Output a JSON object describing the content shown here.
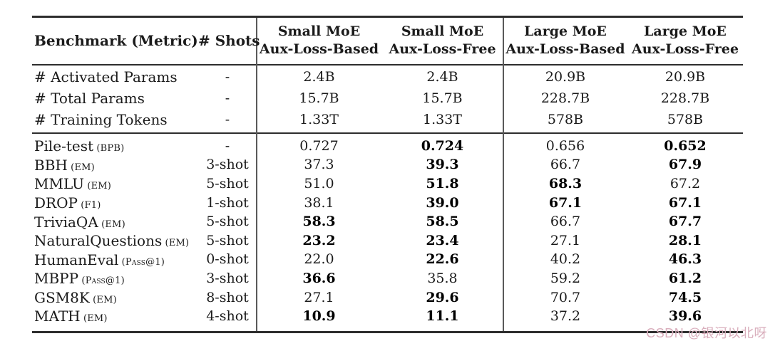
{
  "colors": {
    "rule": "#2d2d2d",
    "vline": "#595959",
    "text": "#1b1b1b",
    "bold_text": "#000000",
    "watermark": "#d9aebc",
    "background": "#ffffff"
  },
  "watermark": {
    "text": "CSDN @银河以北呀"
  },
  "table": {
    "header": {
      "benchmark_col": "Benchmark (Metric)",
      "shots_col": "# Shots",
      "group_cols": [
        {
          "line1": "Small MoE",
          "line2": "Aux-Loss-Based"
        },
        {
          "line1": "Small MoE",
          "line2": "Aux-Loss-Free"
        },
        {
          "line1": "Large MoE",
          "line2": "Aux-Loss-Based"
        },
        {
          "line1": "Large MoE",
          "line2": "Aux-Loss-Free"
        }
      ]
    },
    "param_rows": [
      {
        "name": "# Activated Params",
        "metric": "",
        "shots": "-",
        "values": [
          {
            "text": "2.4B",
            "bold": false
          },
          {
            "text": "2.4B",
            "bold": false
          },
          {
            "text": "20.9B",
            "bold": false
          },
          {
            "text": "20.9B",
            "bold": false
          }
        ]
      },
      {
        "name": "# Total Params",
        "metric": "",
        "shots": "-",
        "values": [
          {
            "text": "15.7B",
            "bold": false
          },
          {
            "text": "15.7B",
            "bold": false
          },
          {
            "text": "228.7B",
            "bold": false
          },
          {
            "text": "228.7B",
            "bold": false
          }
        ]
      },
      {
        "name": "# Training Tokens",
        "metric": "",
        "shots": "-",
        "values": [
          {
            "text": "1.33T",
            "bold": false
          },
          {
            "text": "1.33T",
            "bold": false
          },
          {
            "text": "578B",
            "bold": false
          },
          {
            "text": "578B",
            "bold": false
          }
        ]
      }
    ],
    "benchmark_rows": [
      {
        "name": "Pile-test",
        "metric": "(BPB)",
        "shots": "-",
        "values": [
          {
            "text": "0.727",
            "bold": false
          },
          {
            "text": "0.724",
            "bold": true
          },
          {
            "text": "0.656",
            "bold": false
          },
          {
            "text": "0.652",
            "bold": true
          }
        ]
      },
      {
        "name": "BBH",
        "metric": "(EM)",
        "shots": "3-shot",
        "values": [
          {
            "text": "37.3",
            "bold": false
          },
          {
            "text": "39.3",
            "bold": true
          },
          {
            "text": "66.7",
            "bold": false
          },
          {
            "text": "67.9",
            "bold": true
          }
        ]
      },
      {
        "name": "MMLU",
        "metric": "(EM)",
        "shots": "5-shot",
        "values": [
          {
            "text": "51.0",
            "bold": false
          },
          {
            "text": "51.8",
            "bold": true
          },
          {
            "text": "68.3",
            "bold": true
          },
          {
            "text": "67.2",
            "bold": false
          }
        ]
      },
      {
        "name": "DROP",
        "metric": "(F1)",
        "shots": "1-shot",
        "values": [
          {
            "text": "38.1",
            "bold": false
          },
          {
            "text": "39.0",
            "bold": true
          },
          {
            "text": "67.1",
            "bold": true
          },
          {
            "text": "67.1",
            "bold": true
          }
        ]
      },
      {
        "name": "TriviaQA",
        "metric": "(EM)",
        "shots": "5-shot",
        "values": [
          {
            "text": "58.3",
            "bold": true
          },
          {
            "text": "58.5",
            "bold": true
          },
          {
            "text": "66.7",
            "bold": false
          },
          {
            "text": "67.7",
            "bold": true
          }
        ]
      },
      {
        "name": "NaturalQuestions",
        "metric": "(EM)",
        "shots": "5-shot",
        "values": [
          {
            "text": "23.2",
            "bold": true
          },
          {
            "text": "23.4",
            "bold": true
          },
          {
            "text": "27.1",
            "bold": false
          },
          {
            "text": "28.1",
            "bold": true
          }
        ]
      },
      {
        "name": "HumanEval",
        "metric": "(Pass@1)",
        "shots": "0-shot",
        "values": [
          {
            "text": "22.0",
            "bold": false
          },
          {
            "text": "22.6",
            "bold": true
          },
          {
            "text": "40.2",
            "bold": false
          },
          {
            "text": "46.3",
            "bold": true
          }
        ]
      },
      {
        "name": "MBPP",
        "metric": "(Pass@1)",
        "shots": "3-shot",
        "values": [
          {
            "text": "36.6",
            "bold": true
          },
          {
            "text": "35.8",
            "bold": false
          },
          {
            "text": "59.2",
            "bold": false
          },
          {
            "text": "61.2",
            "bold": true
          }
        ]
      },
      {
        "name": "GSM8K",
        "metric": "(EM)",
        "shots": "8-shot",
        "values": [
          {
            "text": "27.1",
            "bold": false
          },
          {
            "text": "29.6",
            "bold": true
          },
          {
            "text": "70.7",
            "bold": false
          },
          {
            "text": "74.5",
            "bold": true
          }
        ]
      },
      {
        "name": "MATH",
        "metric": "(EM)",
        "shots": "4-shot",
        "values": [
          {
            "text": "10.9",
            "bold": true
          },
          {
            "text": "11.1",
            "bold": true
          },
          {
            "text": "37.2",
            "bold": false
          },
          {
            "text": "39.6",
            "bold": true
          }
        ]
      }
    ]
  }
}
